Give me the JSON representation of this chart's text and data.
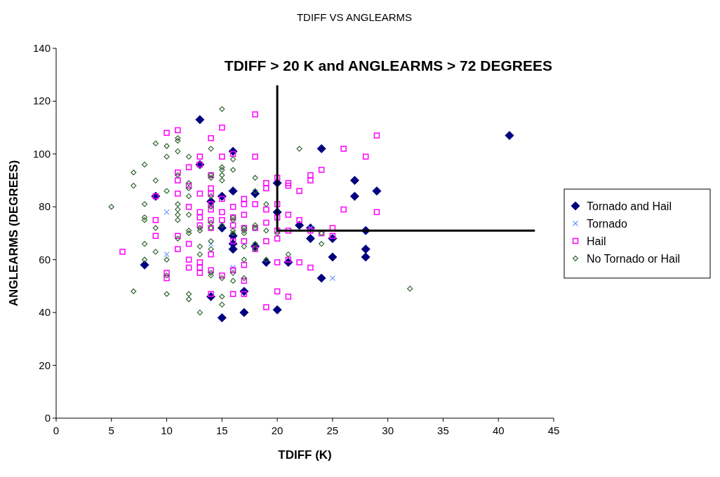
{
  "chart_data": {
    "type": "scatter",
    "title": "TDIFF VS ANGLEARMS",
    "xlabel": "TDIFF (K)",
    "ylabel": "ANGLEARMS (DEGREES)",
    "annotations": [
      "TDIFF > 20 K and ANGLEARMS > 72 DEGREES"
    ],
    "xlim": [
      0,
      45
    ],
    "xticks": [
      0,
      5,
      10,
      15,
      20,
      25,
      30,
      35,
      40,
      45
    ],
    "ylim": [
      0,
      140
    ],
    "yticks": [
      0,
      20,
      40,
      60,
      80,
      100,
      120,
      140
    ],
    "grid": false,
    "legend": "right",
    "series": [
      {
        "name": "Tornado and Hail",
        "color": "#000080",
        "marker": "diamond",
        "x": [
          8,
          13,
          13,
          9,
          14,
          14,
          15,
          15,
          15,
          16,
          16,
          16,
          16,
          16,
          17,
          17,
          18,
          18,
          19,
          20,
          20,
          20,
          21,
          22,
          23,
          23,
          24,
          24,
          25,
          25,
          27,
          27,
          28,
          28,
          28,
          29,
          41
        ],
        "values": [
          58,
          113,
          96,
          84,
          82,
          46,
          84,
          72,
          38,
          101,
          86,
          69,
          66,
          64,
          48,
          40,
          85,
          65,
          59,
          89,
          78,
          41,
          59,
          73,
          72,
          68,
          102,
          53,
          68,
          61,
          90,
          84,
          71,
          64,
          61,
          86,
          107
        ]
      },
      {
        "name": "Tornado",
        "color": "#6699ff",
        "marker": "cross",
        "x": [
          10,
          10,
          14,
          16,
          23,
          25
        ],
        "values": [
          78,
          62,
          66,
          57,
          72,
          53
        ]
      },
      {
        "name": "Hail",
        "color": "#ff00ff",
        "marker": "square",
        "x": [
          6,
          9,
          9,
          9,
          10,
          10,
          10,
          11,
          11,
          11,
          11,
          11,
          11,
          12,
          12,
          12,
          12,
          12,
          12,
          13,
          13,
          13,
          13,
          13,
          13,
          13,
          13,
          13,
          14,
          14,
          14,
          14,
          14,
          14,
          14,
          14,
          14,
          14,
          14,
          15,
          15,
          15,
          15,
          15,
          15,
          16,
          16,
          16,
          16,
          16,
          16,
          16,
          17,
          17,
          17,
          17,
          17,
          17,
          17,
          17,
          18,
          18,
          18,
          18,
          18,
          19,
          19,
          19,
          19,
          19,
          19,
          20,
          20,
          20,
          20,
          20,
          20,
          20,
          21,
          21,
          21,
          21,
          21,
          21,
          22,
          22,
          22,
          23,
          23,
          23,
          23,
          24,
          24,
          25,
          25,
          26,
          26,
          28,
          29,
          29
        ],
        "values": [
          63,
          84,
          75,
          69,
          108,
          55,
          53,
          109,
          93,
          90,
          85,
          69,
          64,
          95,
          88,
          80,
          66,
          60,
          57,
          99,
          96,
          85,
          78,
          76,
          73,
          59,
          57,
          55,
          106,
          92,
          87,
          85,
          81,
          79,
          75,
          72,
          62,
          56,
          47,
          110,
          99,
          83,
          78,
          75,
          54,
          100,
          80,
          76,
          73,
          67,
          56,
          47,
          83,
          81,
          77,
          72,
          67,
          58,
          52,
          47,
          115,
          99,
          81,
          72,
          64,
          89,
          87,
          79,
          74,
          67,
          42,
          91,
          81,
          76,
          71,
          68,
          59,
          48,
          89,
          88,
          77,
          71,
          60,
          46,
          86,
          75,
          59,
          92,
          90,
          71,
          57,
          94,
          70,
          72,
          69,
          102,
          79,
          99,
          107,
          78
        ]
      },
      {
        "name": "No Tornado or Hail",
        "color": "#336633",
        "marker": "diamond",
        "x": [
          5,
          7,
          7,
          7,
          8,
          8,
          8,
          8,
          8,
          8,
          9,
          9,
          9,
          9,
          10,
          10,
          10,
          10,
          10,
          10,
          11,
          11,
          11,
          11,
          11,
          11,
          11,
          11,
          11,
          12,
          12,
          12,
          12,
          12,
          12,
          12,
          12,
          12,
          13,
          13,
          13,
          13,
          13,
          14,
          14,
          14,
          14,
          14,
          14,
          14,
          14,
          14,
          14,
          14,
          15,
          15,
          15,
          15,
          15,
          15,
          15,
          15,
          15,
          16,
          16,
          16,
          16,
          16,
          16,
          16,
          16,
          17,
          17,
          17,
          17,
          17,
          17,
          18,
          18,
          18,
          18,
          18,
          18,
          19,
          19,
          19,
          20,
          21,
          22,
          24,
          24,
          32
        ],
        "values": [
          80,
          93,
          88,
          48,
          96,
          81,
          76,
          75,
          66,
          60,
          104,
          90,
          72,
          63,
          103,
          99,
          86,
          60,
          54,
          47,
          106,
          105,
          101,
          92,
          81,
          79,
          77,
          75,
          68,
          99,
          89,
          87,
          84,
          77,
          71,
          70,
          47,
          45,
          72,
          71,
          65,
          62,
          40,
          102,
          92,
          91,
          84,
          80,
          74,
          72,
          67,
          64,
          55,
          54,
          117,
          95,
          94,
          92,
          90,
          73,
          53,
          46,
          43,
          98,
          94,
          76,
          75,
          71,
          70,
          55,
          52,
          72,
          71,
          70,
          65,
          60,
          53,
          91,
          86,
          73,
          72,
          66,
          64,
          81,
          71,
          60,
          70,
          62,
          102,
          70,
          66,
          49
        ]
      },
      {
        "type": "line",
        "color": "#000000",
        "marker": "none",
        "line_style": "solid",
        "x": [
          20,
          20,
          43.3
        ],
        "values": [
          126,
          71,
          71
        ]
      }
    ]
  }
}
